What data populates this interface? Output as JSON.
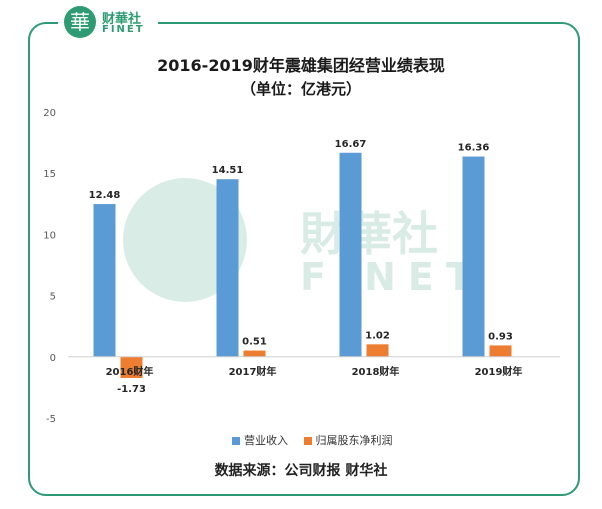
{
  "logo": {
    "cn": "财華社",
    "en": "FINET",
    "mark": "華"
  },
  "watermark": {
    "cn": "財華社",
    "en": "FINET"
  },
  "colors": {
    "revenue": "#5b9bd5",
    "profit": "#ed7d31",
    "frame": "#2e9b74"
  },
  "chart_data": {
    "type": "bar",
    "title": "2016-2019财年震雄集团经营业绩表现",
    "subtitle": "（单位：亿港元）",
    "categories": [
      "2016财年",
      "2017财年",
      "2018财年",
      "2019财年"
    ],
    "series": [
      {
        "name": "营业收入",
        "values": [
          12.48,
          14.51,
          16.67,
          16.36
        ],
        "labels": [
          "12.48",
          "14.51",
          "16.67",
          "16.36"
        ]
      },
      {
        "name": "归属股东净利润",
        "values": [
          -1.73,
          0.51,
          1.02,
          0.93
        ],
        "labels": [
          "-1.73",
          "0.51",
          "1.02",
          "0.93"
        ]
      }
    ],
    "ylim": [
      -5,
      20
    ],
    "yticks": [
      "-5",
      "0",
      "5",
      "10",
      "15",
      "20"
    ],
    "grid": false,
    "legend": "bottom"
  },
  "source": "数据来源：公司财报   财华社"
}
